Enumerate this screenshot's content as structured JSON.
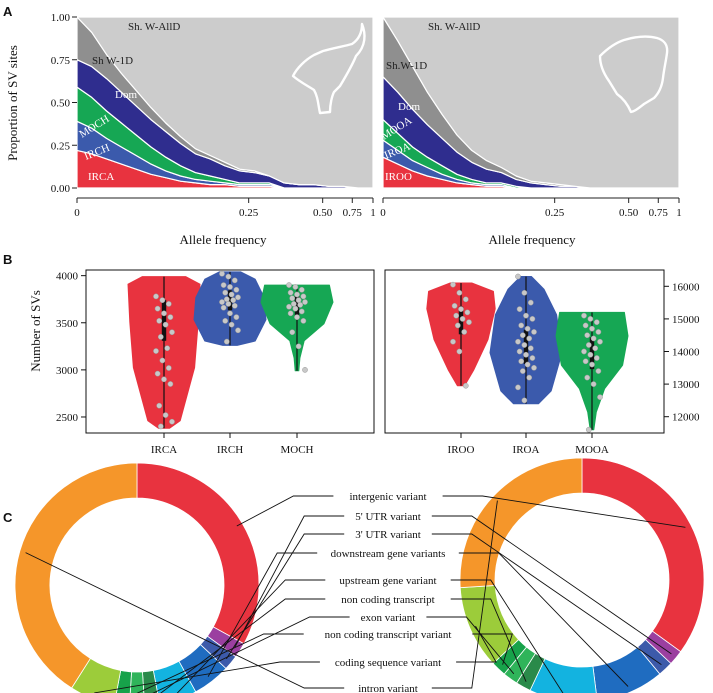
{
  "panels": {
    "a": "A",
    "b": "B",
    "c": "C"
  },
  "colors": {
    "red": "#e8333f",
    "blue": "#3b5aac",
    "green": "#16a754",
    "navy": "#2f2d8e",
    "gray": "#8f8f8f",
    "lightgray": "#cccccc"
  },
  "icons": [
    "cattle-head-icon",
    "sheep-head-icon"
  ],
  "chart_data": [
    {
      "type": "area",
      "panel": "A-left",
      "ylabel": "Proportion of SV sites",
      "xlabel": "Allele frequency",
      "x_ticks": [
        "0",
        "0.25",
        "0.50",
        "0.75",
        "1"
      ],
      "y_ticks": [
        "0.00",
        "0.25",
        "0.50",
        "0.75",
        "1.00"
      ],
      "ylim": [
        0,
        1
      ],
      "x": [
        0,
        0.05,
        0.1,
        0.15,
        0.2,
        0.25,
        0.3,
        0.35,
        0.4,
        0.45,
        0.5,
        0.55,
        0.6,
        0.65,
        0.7,
        0.75,
        0.8,
        0.85,
        0.9,
        0.95,
        1
      ],
      "series": [
        {
          "name": "IRCA",
          "color": "#e8333f",
          "values": [
            0.22,
            0.2,
            0.17,
            0.14,
            0.11,
            0.08,
            0.06,
            0.04,
            0.03,
            0.02,
            0.02,
            0.01,
            0.01,
            0.01,
            0,
            0,
            0,
            0,
            0,
            0,
            0
          ]
        },
        {
          "name": "IRCH",
          "color": "#3b5aac",
          "values": [
            0.17,
            0.15,
            0.12,
            0.1,
            0.08,
            0.06,
            0.04,
            0.03,
            0.02,
            0.02,
            0.01,
            0.01,
            0.01,
            0.01,
            0,
            0,
            0,
            0,
            0,
            0,
            0
          ]
        },
        {
          "name": "MOCH",
          "color": "#16a754",
          "values": [
            0.2,
            0.18,
            0.16,
            0.14,
            0.12,
            0.1,
            0.08,
            0.06,
            0.04,
            0.03,
            0.02,
            0.01,
            0.01,
            0.01,
            0,
            0,
            0,
            0,
            0,
            0,
            0
          ]
        },
        {
          "name": "Dom",
          "color": "#2f2d8e",
          "values": [
            0.16,
            0.18,
            0.19,
            0.18,
            0.17,
            0.16,
            0.15,
            0.13,
            0.11,
            0.1,
            0.08,
            0.07,
            0.06,
            0.04,
            0.03,
            0.02,
            0.02,
            0.01,
            0.01,
            0,
            0
          ]
        },
        {
          "name": "Sh W-1D",
          "color": "#8f8f8f",
          "values": [
            0.25,
            0.2,
            0.14,
            0.11,
            0.09,
            0.07,
            0.05,
            0.04,
            0.03,
            0.02,
            0.02,
            0.01,
            0.01,
            0,
            0,
            0,
            0,
            0,
            0,
            0,
            0
          ]
        },
        {
          "name": "Sh. W-AllD",
          "color": "#cccccc",
          "values": [
            0,
            0.09,
            0.22,
            0.33,
            0.43,
            0.53,
            0.62,
            0.7,
            0.77,
            0.81,
            0.85,
            0.89,
            0.9,
            0.93,
            0.97,
            0.98,
            0.98,
            0.99,
            0.99,
            1,
            1
          ]
        }
      ]
    },
    {
      "type": "area",
      "panel": "A-right",
      "xlabel": "Allele frequency",
      "x_ticks": [
        "0",
        "0.25",
        "0.50",
        "0.75",
        "1"
      ],
      "ylim": [
        0,
        1
      ],
      "x": [
        0,
        0.05,
        0.1,
        0.15,
        0.2,
        0.25,
        0.3,
        0.35,
        0.4,
        0.45,
        0.5,
        0.55,
        0.6,
        0.65,
        0.7,
        0.75,
        0.8,
        0.85,
        0.9,
        0.95,
        1
      ],
      "series": [
        {
          "name": "IROO",
          "color": "#e8333f",
          "values": [
            0.18,
            0.14,
            0.1,
            0.07,
            0.05,
            0.03,
            0.02,
            0.01,
            0.01,
            0,
            0,
            0,
            0,
            0,
            0,
            0,
            0,
            0,
            0,
            0,
            0
          ]
        },
        {
          "name": "IROA",
          "color": "#3b5aac",
          "values": [
            0.1,
            0.08,
            0.06,
            0.05,
            0.03,
            0.02,
            0.01,
            0.01,
            0.01,
            0,
            0,
            0,
            0,
            0,
            0,
            0,
            0,
            0,
            0,
            0,
            0
          ]
        },
        {
          "name": "MOOA",
          "color": "#16a754",
          "values": [
            0.12,
            0.1,
            0.08,
            0.06,
            0.05,
            0.03,
            0.02,
            0.01,
            0.01,
            0.01,
            0,
            0,
            0,
            0,
            0,
            0,
            0,
            0,
            0,
            0,
            0
          ]
        },
        {
          "name": "Dom",
          "color": "#2f2d8e",
          "values": [
            0.25,
            0.24,
            0.22,
            0.19,
            0.16,
            0.13,
            0.1,
            0.08,
            0.06,
            0.04,
            0.03,
            0.02,
            0.01,
            0.01,
            0,
            0,
            0,
            0,
            0,
            0,
            0
          ]
        },
        {
          "name": "Sh.W-1D",
          "color": "#8f8f8f",
          "values": [
            0.35,
            0.3,
            0.25,
            0.19,
            0.14,
            0.1,
            0.07,
            0.05,
            0.03,
            0.02,
            0.01,
            0.01,
            0.01,
            0,
            0,
            0,
            0,
            0,
            0,
            0,
            0
          ]
        },
        {
          "name": "Sh. W-AllD",
          "color": "#cccccc",
          "values": [
            0,
            0.14,
            0.29,
            0.44,
            0.57,
            0.69,
            0.78,
            0.84,
            0.88,
            0.93,
            0.96,
            0.97,
            0.98,
            0.99,
            1,
            1,
            1,
            1,
            1,
            1,
            1
          ]
        }
      ]
    },
    {
      "type": "violin",
      "panel": "B-left",
      "ylabel": "Number of SVs",
      "y_ticks": [
        "2500",
        "3000",
        "3500",
        "4000"
      ],
      "ylim": [
        2330,
        4060
      ],
      "categories": [
        "IRCA",
        "IRCH",
        "MOCH"
      ],
      "colors": [
        "#e8333f",
        "#3b5aac",
        "#16a754"
      ],
      "ranges": [
        [
          2380,
          3990
        ],
        [
          3260,
          4040
        ],
        [
          2990,
          3900
        ]
      ],
      "medians": [
        3550,
        3750,
        3700
      ],
      "points": [
        [
          3780,
          3740,
          3700,
          3650,
          3600,
          3560,
          3520,
          3480,
          3400,
          3350,
          3230,
          3200,
          3100,
          3020,
          2960,
          2900,
          2850,
          2620,
          2520,
          2450,
          2400
        ],
        [
          4020,
          3990,
          3950,
          3900,
          3880,
          3850,
          3820,
          3800,
          3770,
          3750,
          3740,
          3720,
          3700,
          3680,
          3660,
          3600,
          3560,
          3520,
          3480,
          3420,
          3300
        ],
        [
          3900,
          3880,
          3850,
          3820,
          3800,
          3780,
          3760,
          3740,
          3720,
          3700,
          3690,
          3670,
          3650,
          3620,
          3600,
          3560,
          3520,
          3400,
          3250,
          3000
        ]
      ]
    },
    {
      "type": "violin",
      "panel": "B-right",
      "y_ticks": [
        "12000",
        "13000",
        "14000",
        "15000",
        "16000"
      ],
      "ylim": [
        11500,
        16500
      ],
      "categories": [
        "IROO",
        "IROA",
        "MOOA"
      ],
      "colors": [
        "#e8333f",
        "#3b5aac",
        "#16a754"
      ],
      "ranges": [
        [
          12950,
          16100
        ],
        [
          12400,
          16300
        ],
        [
          11600,
          15200
        ]
      ],
      "medians": [
        15000,
        14200,
        14000
      ],
      "points": [
        [
          16050,
          15800,
          15600,
          15400,
          15300,
          15200,
          15100,
          15000,
          14900,
          14800,
          14600,
          14300,
          14000,
          12950
        ],
        [
          16300,
          15800,
          15500,
          15300,
          15100,
          15000,
          14800,
          14700,
          14600,
          14500,
          14400,
          14300,
          14200,
          14100,
          14000,
          13900,
          13800,
          13700,
          13600,
          13500,
          13400,
          13200,
          12900,
          12500
        ],
        [
          15100,
          15000,
          14900,
          14800,
          14700,
          14600,
          14500,
          14400,
          14300,
          14200,
          14100,
          14000,
          13900,
          13800,
          13700,
          13600,
          13400,
          13200,
          13000,
          12600,
          11600
        ]
      ]
    },
    {
      "type": "pie",
      "panel": "C",
      "categories": [
        "intergenic variant",
        "5' UTR variant",
        "3' UTR variant",
        "downstream gene variants",
        "upstream gene variant",
        "non coding transcript",
        "exon variant",
        "non coding transcript variant",
        "coding sequence variant",
        "intron variant"
      ],
      "colors": [
        "#e8333f",
        "#9b3fa0",
        "#3c5aaa",
        "#1f6cc0",
        "#13b3e0",
        "#2a8a4a",
        "#2fb45a",
        "#17a24a",
        "#9ccc3a",
        "#f5962a"
      ],
      "donuts": [
        {
          "name": "left",
          "values": [
            33,
            2,
            2,
            5,
            5,
            2,
            2,
            2,
            6,
            41
          ]
        },
        {
          "name": "right",
          "values": [
            35,
            2,
            2,
            9,
            9,
            2,
            2,
            2,
            11,
            26
          ]
        }
      ]
    }
  ]
}
